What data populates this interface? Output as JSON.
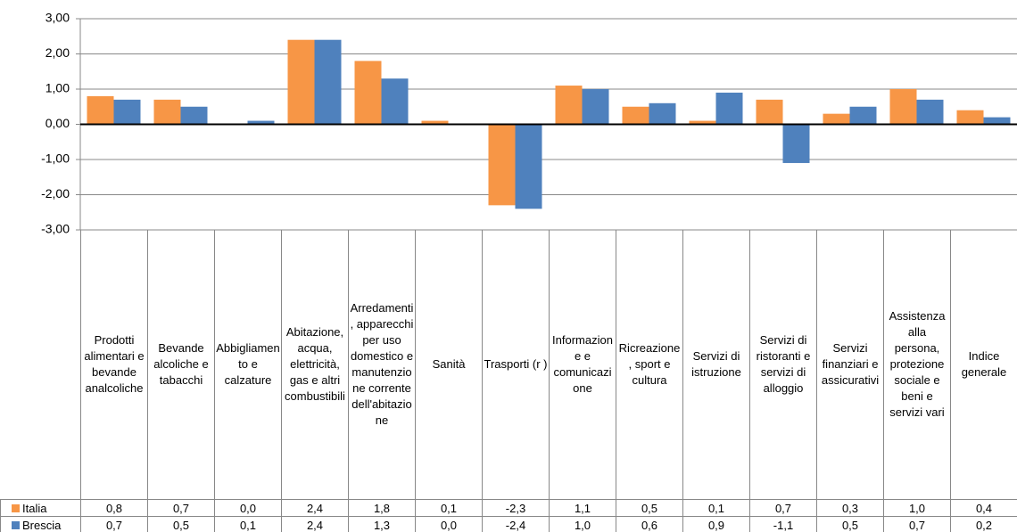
{
  "chart_data": {
    "type": "bar",
    "categories": [
      "Prodotti alimentari e bevande analcoliche",
      "Bevande alcoliche e tabacchi",
      "Abbigliamento e calzature",
      "Abitazione, acqua, elettricità, gas e altri combustibili",
      "Arredamenti, apparecchi per uso domestico e manutenzione corrente dell'abitazione",
      "Sanità",
      "Trasporti (r )",
      "Informazione e comunicazione",
      "Ricreazione, sport e cultura",
      "Servizi di istruzione",
      "Servizi di ristoranti e servizi di alloggio",
      "Servizi finanziari e assicurativi",
      "Assistenza alla persona, protezione sociale e beni e servizi vari",
      "Indice generale"
    ],
    "series": [
      {
        "name": "Italia",
        "color": "#f79646",
        "values": [
          0.8,
          0.7,
          0.0,
          2.4,
          1.8,
          0.1,
          -2.3,
          1.1,
          0.5,
          0.1,
          0.7,
          0.3,
          1.0,
          0.4
        ],
        "value_labels": [
          "0,8",
          "0,7",
          "0,0",
          "2,4",
          "1,8",
          "0,1",
          "-2,3",
          "1,1",
          "0,5",
          "0,1",
          "0,7",
          "0,3",
          "1,0",
          "0,4"
        ]
      },
      {
        "name": "Brescia",
        "color": "#4f81bd",
        "values": [
          0.7,
          0.5,
          0.1,
          2.4,
          1.3,
          0.0,
          -2.4,
          1.0,
          0.6,
          0.9,
          -1.1,
          0.5,
          0.7,
          0.2
        ],
        "value_labels": [
          "0,7",
          "0,5",
          "0,1",
          "2,4",
          "1,3",
          "0,0",
          "-2,4",
          "1,0",
          "0,6",
          "0,9",
          "-1,1",
          "0,5",
          "0,7",
          "0,2"
        ]
      }
    ],
    "ylim": [
      -3,
      3
    ],
    "yticks": [
      {
        "value": -3,
        "label": "-3,00"
      },
      {
        "value": -2,
        "label": "-2,00"
      },
      {
        "value": -1,
        "label": "-1,00"
      },
      {
        "value": 0,
        "label": "0,00"
      },
      {
        "value": 1,
        "label": "1,00"
      },
      {
        "value": 2,
        "label": "2,00"
      },
      {
        "value": 3,
        "label": "3,00"
      }
    ],
    "grid": true
  }
}
